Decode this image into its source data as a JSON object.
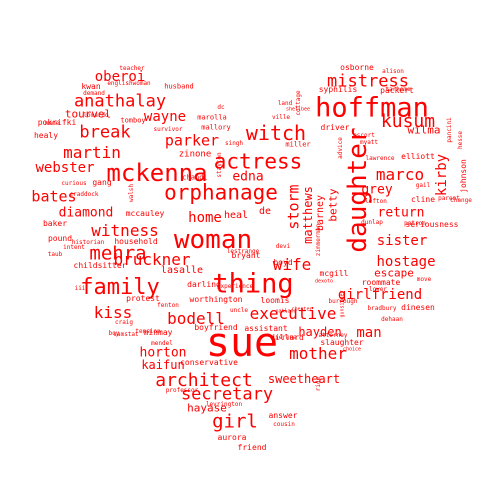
{
  "text_color": "#ff0000",
  "background": "#ffffff",
  "words": [
    "sue",
    "woman",
    "thing",
    "hoffman",
    "daughter",
    "mckenna",
    "family",
    "orphanage",
    "anathalay",
    "mehra",
    "actress",
    "girl",
    "kusum",
    "witch",
    "architect",
    "mistress",
    "secretary",
    "mother",
    "executive",
    "break",
    "bodell",
    "bruckner",
    "wife",
    "martin",
    "kiss",
    "witness",
    "marco",
    "storm",
    "kirby",
    "sister",
    "hostage",
    "girlfriend",
    "parker",
    "bates",
    "oberoi",
    "wayne",
    "webster",
    "home",
    "diamond",
    "man",
    "horton",
    "edna",
    "grey",
    "return",
    "hayden",
    "sweetheart",
    "matthews",
    "tourvel",
    "escape",
    "wilma",
    "kaifun",
    "hayase",
    "betty",
    "barney",
    "heal",
    "lasalle",
    "mcgill",
    "roommate",
    "de",
    "answer",
    "aurora",
    "friend",
    "elliott",
    "zinone",
    "driver",
    "bryant",
    "worthington",
    "loomis",
    "levrington",
    "assistant",
    "conservative",
    "minmay",
    "darling",
    "boyfriend",
    "dillard",
    "mendel",
    "gang",
    "baker",
    "pound",
    "mccauley",
    "household",
    "childsitter",
    "pokrifki",
    "healy",
    "kwan",
    "name",
    "tomboy",
    "syphilis",
    "packert",
    "osborne",
    "johnson",
    "cline",
    "seriousness",
    "dinesen",
    "move",
    "slaughter",
    "attorney",
    "serena",
    "protest",
    "boyd",
    "cousin",
    "mallory",
    "marolla",
    "husband",
    "teacher",
    "survivor",
    "chandl",
    "singh",
    "dc",
    "land",
    "miller",
    "advice",
    "walsh",
    "curious",
    "craddock",
    "stayton",
    "intent",
    "historian",
    "iii",
    "taub",
    "samstat",
    "boy",
    "craig",
    "devi",
    "lestrange",
    "ville",
    "cottage",
    "experience",
    "uncle",
    "gail",
    "alison",
    "tarheme",
    "pancini",
    "hesse",
    "parent",
    "lover",
    "dunlap",
    "patron",
    "myatt",
    "escort",
    "lawrence",
    "lofton",
    "dehaan",
    "bradbury",
    "zimmerman",
    "burrough",
    "gunsinger",
    "ride",
    "lomardo",
    "demand",
    "englishwoman",
    "fenton",
    "change",
    "tension",
    "dexoto",
    "professor",
    "choice",
    "oakland",
    "chester",
    "shellbee"
  ]
}
